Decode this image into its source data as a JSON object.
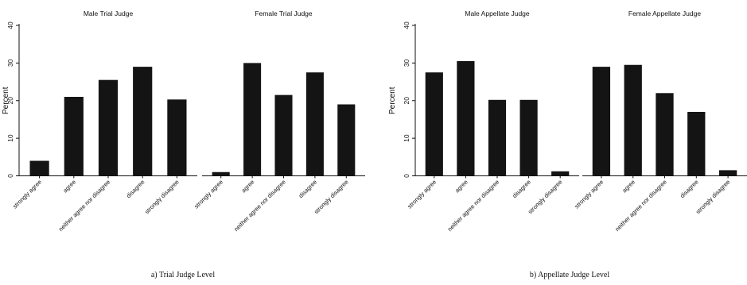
{
  "chart_data": [
    {
      "type": "bar",
      "caption": "a) Trial Judge Level",
      "ylabel": "Percent",
      "ylim": [
        0,
        40
      ],
      "yticks": [
        0,
        10,
        20,
        30,
        40
      ],
      "categories": [
        "strongly agree",
        "agree",
        "neither agree nor disagree",
        "disagree",
        "strongly disagree"
      ],
      "panels": [
        {
          "title": "Male Trial Judge",
          "values": [
            4,
            21,
            25.5,
            29,
            20.3
          ]
        },
        {
          "title": "Female Trial Judge",
          "values": [
            1,
            30,
            21.5,
            27.5,
            19
          ]
        }
      ]
    },
    {
      "type": "bar",
      "caption": "b) Appellate Judge Level",
      "ylabel": "Percent",
      "ylim": [
        0,
        40
      ],
      "yticks": [
        0,
        10,
        20,
        30,
        40
      ],
      "categories": [
        "strongly agree",
        "agree",
        "neither agree nor disagree",
        "disagree",
        "strongly disagree"
      ],
      "panels": [
        {
          "title": "Male Appellate Judge",
          "values": [
            27.5,
            30.5,
            20.2,
            20.2,
            1.2
          ]
        },
        {
          "title": "Female Appellate Judge",
          "values": [
            29,
            29.5,
            22,
            17,
            1.5
          ]
        }
      ]
    }
  ]
}
